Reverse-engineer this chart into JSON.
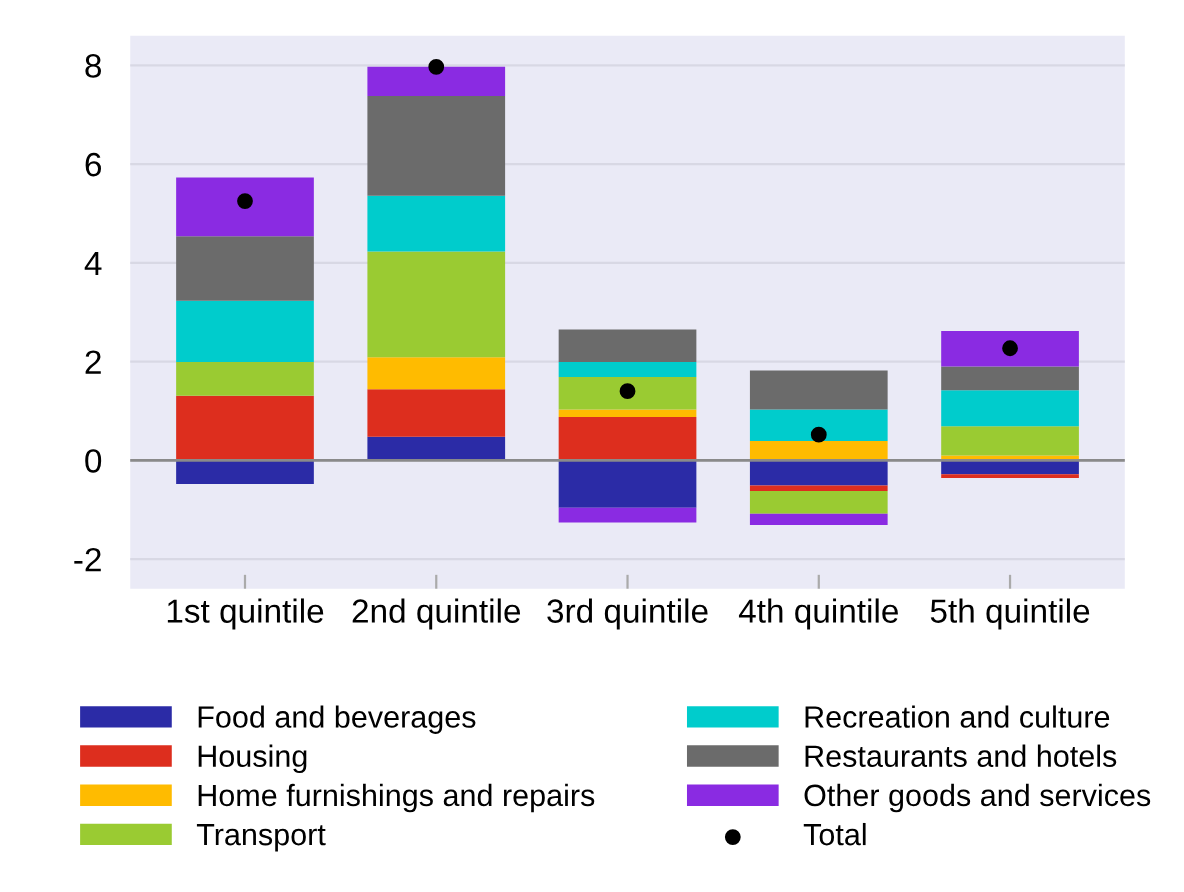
{
  "chart_data": {
    "type": "bar",
    "stacked": true,
    "categories": [
      "1st quintile",
      "2nd quintile",
      "3rd quintile",
      "4th quintile",
      "5th quintile"
    ],
    "series": [
      {
        "name": "Food and beverages",
        "color": "#2b2ba6",
        "values": [
          -0.48,
          0.48,
          -0.96,
          -0.51,
          -0.28
        ]
      },
      {
        "name": "Housing",
        "color": "#dd2e1e",
        "values": [
          1.31,
          0.96,
          0.88,
          -0.11,
          -0.08
        ]
      },
      {
        "name": "Home furnishings and repairs",
        "color": "#ffbb00",
        "values": [
          0,
          0.65,
          0.15,
          0.39,
          0.1
        ]
      },
      {
        "name": "Transport",
        "color": "#9acb32",
        "values": [
          0.68,
          2.14,
          0.66,
          -0.46,
          0.59
        ]
      },
      {
        "name": "Recreation and culture",
        "color": "#00cccc",
        "values": [
          1.24,
          1.13,
          0.3,
          0.64,
          0.73
        ]
      },
      {
        "name": "Restaurants and hotels",
        "color": "#6b6b6b",
        "values": [
          1.31,
          2.02,
          0.66,
          0.79,
          0.48
        ]
      },
      {
        "name": "Other goods and services",
        "color": "#8a2be2",
        "values": [
          1.19,
          0.59,
          -0.3,
          -0.23,
          0.72
        ]
      },
      {
        "name": "Total",
        "type": "scatter",
        "color": "#000000",
        "values": [
          5.25,
          7.97,
          1.4,
          0.52,
          2.27
        ]
      }
    ],
    "ylim": [
      -2.6,
      8.6
    ],
    "yticks": [
      -2,
      0,
      2,
      4,
      6,
      8
    ],
    "grid": "y",
    "legend": "bottom",
    "marker": "circle",
    "ref_lines": [
      {
        "axis": "y",
        "value": 0,
        "color": "#8a8a8a"
      }
    ]
  }
}
